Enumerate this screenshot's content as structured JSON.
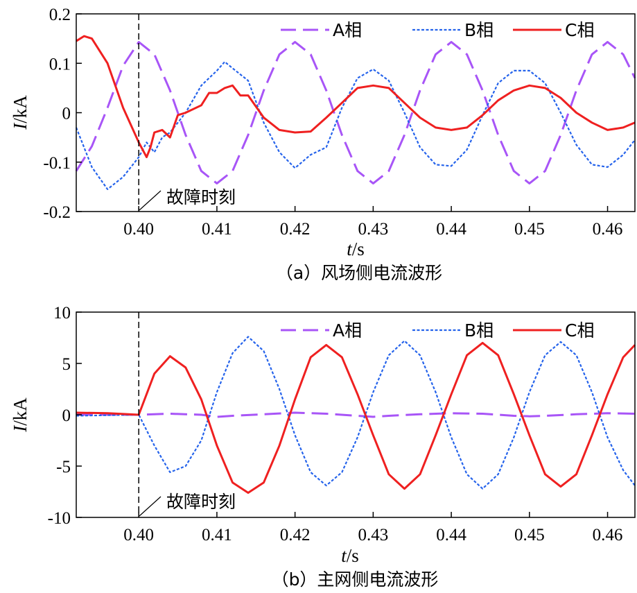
{
  "chart_data": [
    {
      "type": "line",
      "caption": "（a）风场侧电流波形",
      "xlabel_italic": "t",
      "xlabel_unit": "/s",
      "ylabel_italic": "I",
      "ylabel_unit": "/kA",
      "xlim": [
        0.392,
        0.4635
      ],
      "ylim": [
        -0.2,
        0.2
      ],
      "xticks": [
        0.4,
        0.41,
        0.42,
        0.43,
        0.44,
        0.45,
        0.46
      ],
      "xtick_labels": [
        "0.40",
        "0.41",
        "0.42",
        "0.43",
        "0.44",
        "0.45",
        "0.46"
      ],
      "yticks": [
        -0.2,
        -0.1,
        0,
        0.1,
        0.2
      ],
      "ytick_labels": [
        "-0.2",
        "-0.1",
        "0",
        "0.1",
        "0.2"
      ],
      "fault_time": 0.4,
      "annotation": "故障时刻",
      "legend_position": "top-right",
      "series": [
        {
          "name": "A相",
          "color": "#a855f7",
          "style": "dashed",
          "x": [
            0.392,
            0.394,
            0.396,
            0.398,
            0.4,
            0.402,
            0.404,
            0.406,
            0.408,
            0.41,
            0.412,
            0.414,
            0.416,
            0.418,
            0.42,
            0.422,
            0.424,
            0.426,
            0.428,
            0.43,
            0.432,
            0.434,
            0.436,
            0.438,
            0.44,
            0.442,
            0.444,
            0.446,
            0.448,
            0.45,
            0.452,
            0.454,
            0.456,
            0.458,
            0.46,
            0.462,
            0.4635
          ],
          "y": [
            -0.118,
            -0.068,
            0.01,
            0.095,
            0.143,
            0.118,
            0.045,
            -0.045,
            -0.118,
            -0.143,
            -0.118,
            -0.045,
            0.045,
            0.118,
            0.143,
            0.118,
            0.045,
            -0.045,
            -0.118,
            -0.143,
            -0.118,
            -0.045,
            0.045,
            0.118,
            0.143,
            0.118,
            0.045,
            -0.045,
            -0.118,
            -0.143,
            -0.118,
            -0.045,
            0.045,
            0.118,
            0.143,
            0.118,
            0.07
          ]
        },
        {
          "name": "B相",
          "color": "#2563eb",
          "style": "dotted",
          "x": [
            0.392,
            0.394,
            0.396,
            0.398,
            0.4,
            0.401,
            0.402,
            0.403,
            0.404,
            0.406,
            0.408,
            0.41,
            0.411,
            0.412,
            0.414,
            0.416,
            0.418,
            0.42,
            0.422,
            0.424,
            0.426,
            0.428,
            0.43,
            0.432,
            0.434,
            0.436,
            0.438,
            0.44,
            0.442,
            0.444,
            0.446,
            0.448,
            0.45,
            0.452,
            0.454,
            0.456,
            0.458,
            0.46,
            0.462,
            0.4635
          ],
          "y": [
            -0.03,
            -0.11,
            -0.155,
            -0.13,
            -0.09,
            -0.06,
            -0.08,
            -0.05,
            -0.04,
            0.0,
            0.055,
            0.085,
            0.103,
            0.09,
            0.065,
            -0.02,
            -0.08,
            -0.112,
            -0.085,
            -0.07,
            0.01,
            0.07,
            0.088,
            0.065,
            0.0,
            -0.07,
            -0.105,
            -0.108,
            -0.075,
            -0.005,
            0.06,
            0.085,
            0.085,
            0.06,
            0.0,
            -0.065,
            -0.105,
            -0.11,
            -0.085,
            -0.055
          ]
        },
        {
          "name": "C相",
          "color": "#ef2020",
          "style": "solid",
          "x": [
            0.392,
            0.393,
            0.394,
            0.396,
            0.398,
            0.4,
            0.401,
            0.4015,
            0.402,
            0.403,
            0.404,
            0.405,
            0.406,
            0.408,
            0.409,
            0.41,
            0.411,
            0.412,
            0.413,
            0.414,
            0.416,
            0.418,
            0.42,
            0.422,
            0.424,
            0.426,
            0.428,
            0.43,
            0.432,
            0.434,
            0.436,
            0.438,
            0.44,
            0.442,
            0.444,
            0.446,
            0.448,
            0.45,
            0.452,
            0.454,
            0.456,
            0.458,
            0.46,
            0.462,
            0.4635
          ],
          "y": [
            0.145,
            0.155,
            0.15,
            0.1,
            0.01,
            -0.06,
            -0.09,
            -0.07,
            -0.04,
            -0.035,
            -0.05,
            -0.005,
            0.0,
            0.015,
            0.04,
            0.04,
            0.05,
            0.055,
            0.035,
            0.035,
            -0.01,
            -0.035,
            -0.04,
            -0.038,
            -0.01,
            0.02,
            0.05,
            0.055,
            0.05,
            0.02,
            -0.01,
            -0.03,
            -0.035,
            -0.03,
            -0.005,
            0.025,
            0.045,
            0.055,
            0.05,
            0.03,
            0.0,
            -0.02,
            -0.035,
            -0.03,
            -0.02
          ]
        }
      ]
    },
    {
      "type": "line",
      "caption": "（b）主网侧电流波形",
      "xlabel_italic": "t",
      "xlabel_unit": "/s",
      "ylabel_italic": "I",
      "ylabel_unit": "/kA",
      "xlim": [
        0.392,
        0.4635
      ],
      "ylim": [
        -10,
        10
      ],
      "xticks": [
        0.4,
        0.41,
        0.42,
        0.43,
        0.44,
        0.45,
        0.46
      ],
      "xtick_labels": [
        "0.40",
        "0.41",
        "0.42",
        "0.43",
        "0.44",
        "0.45",
        "0.46"
      ],
      "yticks": [
        -10,
        -5,
        0,
        5,
        10
      ],
      "ytick_labels": [
        "-10",
        "-5",
        "0",
        "5",
        "10"
      ],
      "fault_time": 0.4,
      "annotation": "故障时刻",
      "legend_position": "top-right",
      "series": [
        {
          "name": "A相",
          "color": "#a855f7",
          "style": "dashed",
          "x": [
            0.392,
            0.396,
            0.4,
            0.404,
            0.408,
            0.41,
            0.412,
            0.416,
            0.42,
            0.424,
            0.428,
            0.43,
            0.432,
            0.436,
            0.44,
            0.444,
            0.448,
            0.45,
            0.452,
            0.456,
            0.46,
            0.4635
          ],
          "y": [
            0.0,
            0.0,
            0.0,
            0.1,
            0.0,
            -0.2,
            -0.1,
            0.05,
            0.2,
            0.1,
            -0.1,
            -0.2,
            -0.1,
            0.05,
            0.15,
            0.1,
            -0.1,
            -0.15,
            -0.1,
            0.05,
            0.15,
            0.1
          ]
        },
        {
          "name": "B相",
          "color": "#2563eb",
          "style": "dotted",
          "x": [
            0.392,
            0.396,
            0.4,
            0.402,
            0.404,
            0.406,
            0.408,
            0.41,
            0.412,
            0.414,
            0.416,
            0.418,
            0.42,
            0.422,
            0.424,
            0.426,
            0.428,
            0.43,
            0.432,
            0.434,
            0.436,
            0.438,
            0.44,
            0.442,
            0.444,
            0.446,
            0.448,
            0.45,
            0.452,
            0.454,
            0.456,
            0.458,
            0.46,
            0.462,
            0.4635
          ],
          "y": [
            -0.1,
            -0.05,
            0.0,
            -3.0,
            -5.6,
            -5.0,
            -2.5,
            2.2,
            6.0,
            7.6,
            6.2,
            2.5,
            -2.0,
            -5.6,
            -6.9,
            -5.6,
            -2.2,
            2.2,
            5.8,
            7.2,
            5.8,
            2.2,
            -2.2,
            -5.8,
            -7.2,
            -5.8,
            -2.2,
            2.2,
            5.8,
            7.1,
            5.8,
            2.2,
            -2.2,
            -5.4,
            -6.9
          ]
        },
        {
          "name": "C相",
          "color": "#ef2020",
          "style": "solid",
          "x": [
            0.392,
            0.396,
            0.4,
            0.402,
            0.404,
            0.406,
            0.408,
            0.41,
            0.412,
            0.414,
            0.416,
            0.418,
            0.42,
            0.422,
            0.424,
            0.426,
            0.428,
            0.43,
            0.432,
            0.434,
            0.436,
            0.438,
            0.44,
            0.442,
            0.444,
            0.446,
            0.448,
            0.45,
            0.452,
            0.454,
            0.456,
            0.458,
            0.46,
            0.462,
            0.4635
          ],
          "y": [
            0.2,
            0.15,
            0.0,
            4.0,
            5.7,
            4.6,
            1.5,
            -3.0,
            -6.6,
            -7.6,
            -6.6,
            -3.0,
            1.5,
            5.6,
            6.8,
            5.6,
            2.0,
            -2.0,
            -5.8,
            -7.2,
            -5.8,
            -2.0,
            2.0,
            5.8,
            7.0,
            5.8,
            2.0,
            -2.0,
            -5.8,
            -7.0,
            -5.8,
            -2.0,
            2.0,
            5.6,
            6.8
          ]
        }
      ]
    }
  ]
}
